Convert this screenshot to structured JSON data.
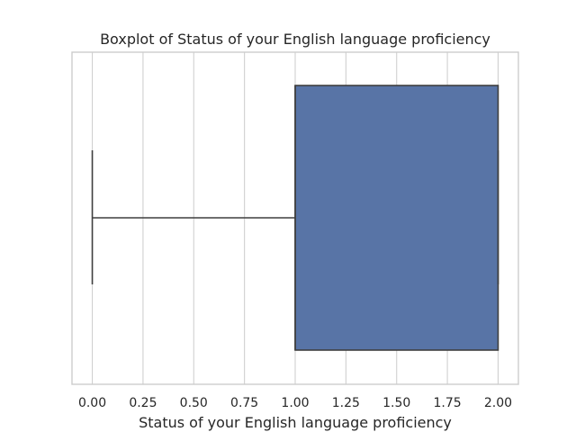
{
  "chart_data": {
    "type": "box",
    "title": "Boxplot of Status of your English language proficiency",
    "xlabel": "Status of your English language proficiency",
    "ylabel": "",
    "orientation": "horizontal",
    "xlim": [
      -0.1,
      2.1
    ],
    "xticks": [
      0.0,
      0.25,
      0.5,
      0.75,
      1.0,
      1.25,
      1.5,
      1.75,
      2.0
    ],
    "xtick_labels": [
      "0.00",
      "0.25",
      "0.50",
      "0.75",
      "1.00",
      "1.25",
      "1.50",
      "1.75",
      "2.00"
    ],
    "grid": "vertical",
    "box": {
      "whisker_low": 0.0,
      "q1": 1.0,
      "median": 1.0,
      "q3": 2.0,
      "whisker_high": 2.0
    },
    "colors": {
      "box_fill": "#5874a6",
      "line": "#3f3f3f"
    }
  }
}
